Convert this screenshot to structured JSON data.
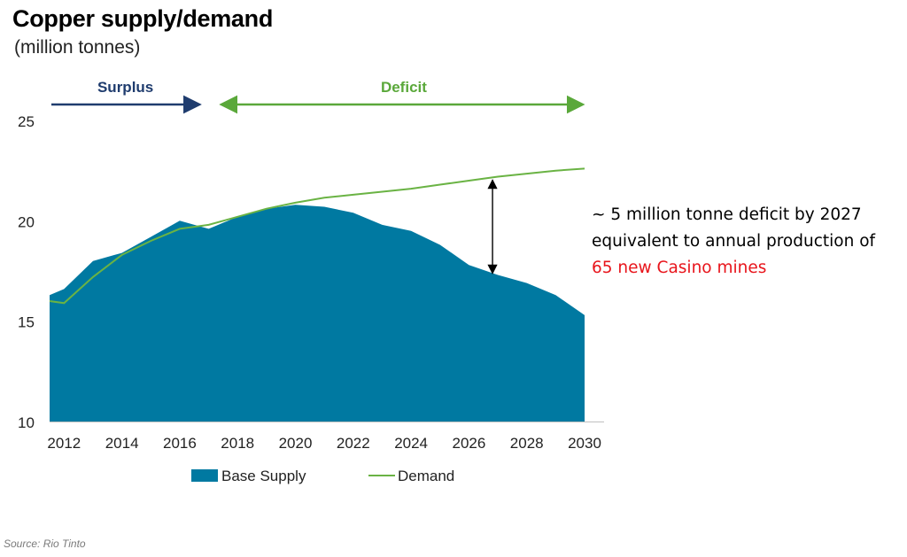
{
  "header": {
    "title": "Copper supply/demand",
    "subtitle": "(million tonnes)"
  },
  "annotations": {
    "surplus_label": "Surplus",
    "deficit_label": "Deficit",
    "note_line1": "~ 5 million tonne deficit by 2027",
    "note_line2": "equivalent to annual production of",
    "note_line3": "65 new Casino mines"
  },
  "legend": {
    "supply": "Base Supply",
    "demand": "Demand"
  },
  "source": "Source: Rio Tinto",
  "colors": {
    "supply": "#0079a1",
    "demand": "#6ab344",
    "surplus": "#1f3c6e",
    "deficit": "#5aa83a",
    "highlight": "#e8141b"
  },
  "chart_data": {
    "type": "area",
    "x": [
      2011.5,
      2012,
      2013,
      2014,
      2015,
      2016,
      2017,
      2018,
      2019,
      2020,
      2021,
      2022,
      2023,
      2024,
      2025,
      2026,
      2027,
      2028,
      2029,
      2030
    ],
    "x_ticks": [
      2012,
      2014,
      2016,
      2018,
      2020,
      2022,
      2024,
      2026,
      2028,
      2030
    ],
    "y_ticks": [
      10,
      15,
      20,
      25
    ],
    "ylim": [
      10,
      25
    ],
    "series": [
      {
        "name": "Base Supply",
        "kind": "area",
        "values": [
          16.3,
          16.6,
          18.0,
          18.4,
          19.2,
          20.0,
          19.6,
          20.2,
          20.6,
          20.8,
          20.7,
          20.4,
          19.8,
          19.5,
          18.8,
          17.8,
          17.3,
          16.9,
          16.3,
          15.3
        ]
      },
      {
        "name": "Demand",
        "kind": "line",
        "values": [
          16.0,
          15.9,
          17.2,
          18.3,
          19.0,
          19.6,
          19.8,
          20.2,
          20.6,
          20.9,
          21.15,
          21.3,
          21.45,
          21.6,
          21.8,
          22.0,
          22.2,
          22.35,
          22.5,
          22.6
        ]
      }
    ],
    "surplus_range": [
      2011.5,
      2016.5
    ],
    "deficit_range": [
      2017.5,
      2030
    ],
    "gap_year": 2027
  }
}
